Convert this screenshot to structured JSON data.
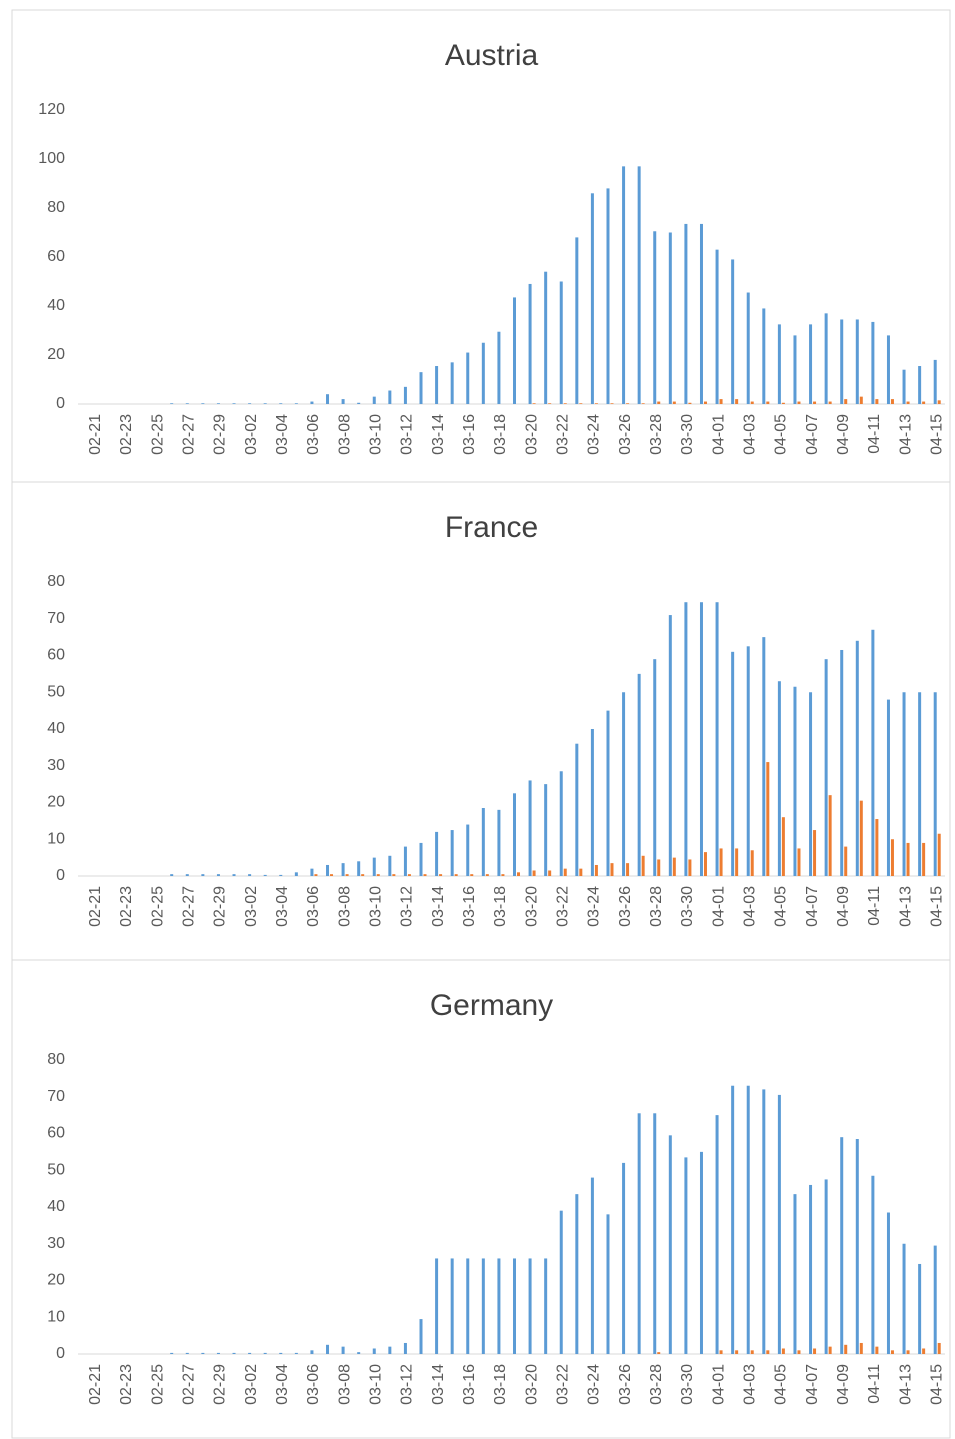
{
  "chart_data": [
    {
      "type": "bar",
      "title": "Austria",
      "categories": [
        "02-21",
        null,
        "02-23",
        null,
        "02-25",
        null,
        "02-27",
        null,
        "02-29",
        null,
        "03-02",
        null,
        "03-04",
        null,
        "03-06",
        null,
        "03-08",
        null,
        "03-10",
        null,
        "03-12",
        null,
        "03-14",
        null,
        "03-16",
        null,
        "03-18",
        null,
        "03-20",
        null,
        "03-22",
        null,
        "03-24",
        null,
        "03-26",
        null,
        "03-28",
        null,
        "03-30",
        null,
        "04-01",
        null,
        "04-03",
        null,
        "04-05",
        null,
        "04-07",
        null,
        "04-09",
        null,
        "04-11",
        null,
        "04-13",
        null,
        "04-15"
      ],
      "series": [
        {
          "color": "#5b9bd5",
          "values": [
            0,
            0,
            0,
            0,
            0,
            0.3,
            0.3,
            0.3,
            0.3,
            0.3,
            0.3,
            0.3,
            0.3,
            0.3,
            1,
            4,
            2,
            0.5,
            3,
            5.5,
            7,
            13,
            15.5,
            17,
            21,
            25,
            29.5,
            43.5,
            49,
            54,
            50,
            68,
            86,
            88,
            97,
            97,
            70.5,
            70,
            73.5,
            73.5,
            63,
            59,
            45.5,
            39,
            32.5,
            28,
            32.5,
            37,
            34.5,
            34.5,
            33.5,
            28,
            14,
            15.5,
            18
          ]
        },
        {
          "color": "#ed7d31",
          "values": [
            0,
            0,
            0,
            0,
            0,
            0,
            0,
            0,
            0,
            0,
            0,
            0,
            0,
            0,
            0,
            0,
            0,
            0,
            0,
            0,
            0,
            0,
            0,
            0,
            0,
            0,
            0,
            0,
            0.3,
            0.3,
            0.3,
            0.3,
            0.3,
            0.3,
            0.3,
            0.3,
            1,
            1,
            0.5,
            1,
            2,
            2,
            1,
            1,
            0.5,
            1,
            1,
            1,
            2,
            3,
            2,
            2,
            1,
            1,
            1.5
          ]
        }
      ],
      "ylim": [
        0,
        120
      ],
      "yticks": [
        0,
        20,
        40,
        60,
        80,
        100,
        120
      ]
    },
    {
      "type": "bar",
      "title": "France",
      "categories": [
        "02-21",
        null,
        "02-23",
        null,
        "02-25",
        null,
        "02-27",
        null,
        "02-29",
        null,
        "03-02",
        null,
        "03-04",
        null,
        "03-06",
        null,
        "03-08",
        null,
        "03-10",
        null,
        "03-12",
        null,
        "03-14",
        null,
        "03-16",
        null,
        "03-18",
        null,
        "03-20",
        null,
        "03-22",
        null,
        "03-24",
        null,
        "03-26",
        null,
        "03-28",
        null,
        "03-30",
        null,
        "04-01",
        null,
        "04-03",
        null,
        "04-05",
        null,
        "04-07",
        null,
        "04-09",
        null,
        "04-11",
        null,
        "04-13",
        null,
        "04-15"
      ],
      "series": [
        {
          "color": "#5b9bd5",
          "values": [
            0,
            0,
            0,
            0,
            0,
            0.5,
            0.5,
            0.5,
            0.5,
            0.5,
            0.5,
            0.3,
            0.3,
            1,
            2,
            3,
            3.5,
            4,
            5,
            5.5,
            8,
            9,
            12,
            12.5,
            14,
            18.5,
            18,
            22.5,
            26,
            25,
            28.5,
            36,
            40,
            45,
            50,
            55,
            59,
            71,
            74.5,
            74.5,
            74.5,
            61,
            62.5,
            65,
            53,
            51.5,
            50,
            59,
            61.5,
            64,
            67,
            48,
            50,
            50,
            50
          ]
        },
        {
          "color": "#ed7d31",
          "values": [
            0,
            0,
            0,
            0,
            0,
            0,
            0,
            0,
            0,
            0,
            0,
            0,
            0,
            0,
            0.5,
            0.5,
            0.5,
            0.5,
            0.5,
            0.5,
            0.5,
            0.5,
            0.5,
            0.5,
            0.5,
            0.5,
            0.5,
            1,
            1.5,
            1.5,
            2,
            2,
            3,
            3.5,
            3.5,
            5.5,
            4.5,
            5,
            4.5,
            6.5,
            7.5,
            7.5,
            7,
            31,
            16,
            7.5,
            12.5,
            22,
            8,
            20.5,
            15.5,
            10,
            9,
            9,
            11.5
          ]
        }
      ],
      "ylim": [
        0,
        80
      ],
      "yticks": [
        0,
        10,
        20,
        30,
        40,
        50,
        60,
        70,
        80
      ]
    },
    {
      "type": "bar",
      "title": "Germany",
      "categories": [
        "02-21",
        null,
        "02-23",
        null,
        "02-25",
        null,
        "02-27",
        null,
        "02-29",
        null,
        "03-02",
        null,
        "03-04",
        null,
        "03-06",
        null,
        "03-08",
        null,
        "03-10",
        null,
        "03-12",
        null,
        "03-14",
        null,
        "03-16",
        null,
        "03-18",
        null,
        "03-20",
        null,
        "03-22",
        null,
        "03-24",
        null,
        "03-26",
        null,
        "03-28",
        null,
        "03-30",
        null,
        "04-01",
        null,
        "04-03",
        null,
        "04-05",
        null,
        "04-07",
        null,
        "04-09",
        null,
        "04-11",
        null,
        "04-13",
        null,
        "04-15"
      ],
      "series": [
        {
          "color": "#5b9bd5",
          "values": [
            0,
            0,
            0,
            0,
            0,
            0.3,
            0.3,
            0.3,
            0.3,
            0.3,
            0.3,
            0.3,
            0.3,
            0.3,
            1,
            2.5,
            2,
            0.5,
            1.5,
            2,
            3,
            9.5,
            26,
            26,
            26,
            26,
            26,
            26,
            26,
            26,
            39,
            43.5,
            48,
            38,
            52,
            65.5,
            65.5,
            59.5,
            53.5,
            55,
            65,
            73,
            73,
            72,
            70.5,
            43.5,
            46,
            47.5,
            59,
            58.5,
            48.5,
            38.5,
            30,
            24.5,
            29.5
          ]
        },
        {
          "color": "#ed7d31",
          "values": [
            0,
            0,
            0,
            0,
            0,
            0,
            0,
            0,
            0,
            0,
            0,
            0,
            0,
            0,
            0,
            0,
            0,
            0,
            0,
            0,
            0,
            0,
            0,
            0,
            0,
            0,
            0,
            0,
            0,
            0,
            0,
            0,
            0,
            0,
            0,
            0,
            0.5,
            0,
            0,
            0,
            1,
            1,
            1,
            1,
            1.5,
            1,
            1.5,
            2,
            2.5,
            3,
            2,
            1,
            1,
            1.5,
            3
          ]
        }
      ],
      "ylim": [
        0,
        80
      ],
      "yticks": [
        0,
        10,
        20,
        30,
        40,
        50,
        60,
        70,
        80
      ]
    }
  ]
}
